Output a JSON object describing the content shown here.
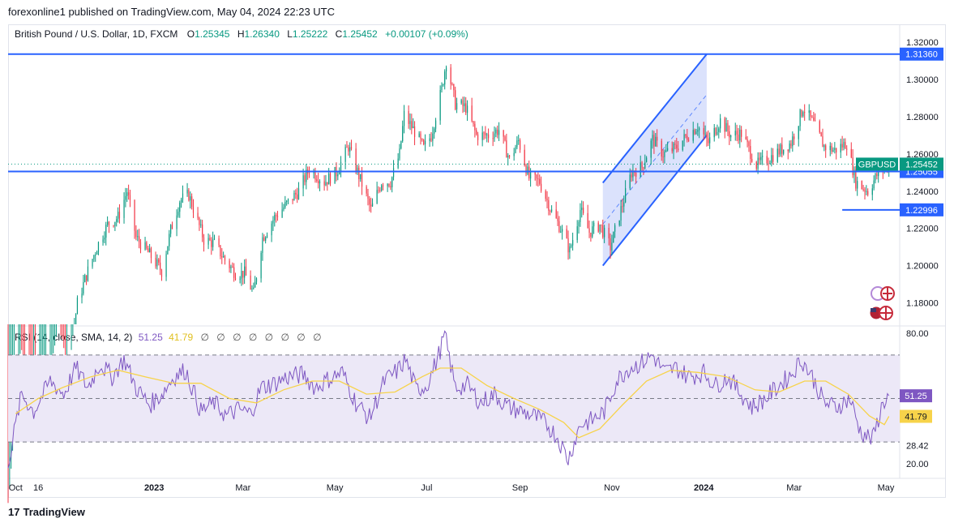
{
  "header": {
    "published": "forexonline1 published on TradingView.com, May 04, 2024 22:23 UTC"
  },
  "legend": {
    "symbol": "British Pound / U.S. Dollar, 1D, FXCM",
    "open_label": "O",
    "open": "1.25345",
    "high_label": "H",
    "high": "1.26340",
    "low_label": "L",
    "low": "1.25222",
    "close_label": "C",
    "close": "1.25452",
    "change": "+0.00107 (+0.09%)"
  },
  "rsi_legend": {
    "title": "RSI (14, close, SMA, 14, 2)",
    "rsi_value": "51.25",
    "sma_value": "41.79",
    "empty_values": [
      "∅",
      "∅",
      "∅",
      "∅",
      "∅",
      "∅",
      "∅",
      "∅"
    ]
  },
  "footer": {
    "brand": "TradingView",
    "logo": "17"
  },
  "colors": {
    "up": "#089981",
    "down": "#f23645",
    "line": "#2962ff",
    "channel_fill": "#c7d3fb",
    "rsi": "#7e57c2",
    "rsi_sma": "#f7d34a",
    "rsi_band": "#ece8f7",
    "axis_text": "#131722"
  },
  "chart_data": {
    "type": "candlestick",
    "title": "British Pound / U.S. Dollar, 1D, FXCM",
    "symbol_tag": "GBPUSD",
    "price_axis_ticks": [
      "1.32000",
      "1.30000",
      "1.28000",
      "1.26000",
      "1.24000",
      "1.22000",
      "1.20000",
      "1.18000"
    ],
    "price_range": [
      1.1685,
      1.3235
    ],
    "time_axis_labels": [
      "Oct",
      "16",
      "2023",
      "Mar",
      "May",
      "Jul",
      "Sep",
      "Nov",
      "2024",
      "Mar",
      "May"
    ],
    "time_axis_dates": [
      "2022-10-01",
      "2022-10-16",
      "2023-01-01",
      "2023-03-01",
      "2023-05-01",
      "2023-07-01",
      "2023-09-01",
      "2023-11-01",
      "2024-01-01",
      "2024-03-01",
      "2024-05-01"
    ],
    "date_range": [
      "2022-09-26",
      "2024-05-08"
    ],
    "close_price_tag": "1.25452",
    "horizontal_lines": [
      {
        "price": 1.3136,
        "label": "1.31360"
      },
      {
        "price": 1.25055,
        "label": "1.25055"
      },
      {
        "price": 1.22996,
        "label": "1.22996",
        "start": "2024-04-02"
      }
    ],
    "channel": {
      "lower_start": {
        "date": "2023-10-26",
        "price": 1.2
      },
      "lower_end": {
        "date": "2024-01-03",
        "price": 1.27
      },
      "upper_start": {
        "date": "2023-10-26",
        "price": 1.2445
      },
      "upper_end": {
        "date": "2024-01-03",
        "price": 1.3136
      }
    },
    "price_path": [
      [
        "2022-09-26",
        1.07
      ],
      [
        "2022-10-04",
        1.15
      ],
      [
        "2022-10-12",
        1.1
      ],
      [
        "2022-10-20",
        1.125
      ],
      [
        "2022-10-28",
        1.16
      ],
      [
        "2022-11-05",
        1.145
      ],
      [
        "2022-11-11",
        1.18
      ],
      [
        "2022-11-17",
        1.195
      ],
      [
        "2022-11-24",
        1.21
      ],
      [
        "2022-12-01",
        1.222
      ],
      [
        "2022-12-08",
        1.226
      ],
      [
        "2022-12-14",
        1.24
      ],
      [
        "2022-12-20",
        1.215
      ],
      [
        "2022-12-30",
        1.205
      ],
      [
        "2023-01-06",
        1.197
      ],
      [
        "2023-01-12",
        1.219
      ],
      [
        "2023-01-18",
        1.235
      ],
      [
        "2023-01-24",
        1.238
      ],
      [
        "2023-02-03",
        1.214
      ],
      [
        "2023-02-10",
        1.212
      ],
      [
        "2023-02-17",
        1.203
      ],
      [
        "2023-02-24",
        1.196
      ],
      [
        "2023-03-02",
        1.196
      ],
      [
        "2023-03-08",
        1.185
      ],
      [
        "2023-03-14",
        1.215
      ],
      [
        "2023-03-22",
        1.226
      ],
      [
        "2023-03-31",
        1.234
      ],
      [
        "2023-04-07",
        1.24
      ],
      [
        "2023-04-14",
        1.252
      ],
      [
        "2023-04-24",
        1.245
      ],
      [
        "2023-05-02",
        1.25
      ],
      [
        "2023-05-10",
        1.264
      ],
      [
        "2023-05-18",
        1.246
      ],
      [
        "2023-05-25",
        1.23
      ],
      [
        "2023-06-01",
        1.245
      ],
      [
        "2023-06-07",
        1.245
      ],
      [
        "2023-06-13",
        1.26
      ],
      [
        "2023-06-16",
        1.281
      ],
      [
        "2023-06-23",
        1.272
      ],
      [
        "2023-06-29",
        1.263
      ],
      [
        "2023-07-04",
        1.27
      ],
      [
        "2023-07-11",
        1.295
      ],
      [
        "2023-07-14",
        1.31
      ],
      [
        "2023-07-20",
        1.287
      ],
      [
        "2023-07-27",
        1.285
      ],
      [
        "2023-08-03",
        1.27
      ],
      [
        "2023-08-11",
        1.27
      ],
      [
        "2023-08-18",
        1.273
      ],
      [
        "2023-08-25",
        1.257
      ],
      [
        "2023-08-31",
        1.267
      ],
      [
        "2023-09-07",
        1.247
      ],
      [
        "2023-09-14",
        1.245
      ],
      [
        "2023-09-22",
        1.229
      ],
      [
        "2023-09-28",
        1.22
      ],
      [
        "2023-10-04",
        1.208
      ],
      [
        "2023-10-11",
        1.23
      ],
      [
        "2023-10-17",
        1.218
      ],
      [
        "2023-10-24",
        1.222
      ],
      [
        "2023-10-31",
        1.21
      ],
      [
        "2023-11-07",
        1.23
      ],
      [
        "2023-11-14",
        1.25
      ],
      [
        "2023-11-21",
        1.253
      ],
      [
        "2023-11-28",
        1.268
      ],
      [
        "2023-12-05",
        1.26
      ],
      [
        "2023-12-13",
        1.263
      ],
      [
        "2023-12-20",
        1.269
      ],
      [
        "2023-12-28",
        1.275
      ],
      [
        "2024-01-04",
        1.266
      ],
      [
        "2024-01-12",
        1.278
      ],
      [
        "2024-01-19",
        1.27
      ],
      [
        "2024-01-26",
        1.271
      ],
      [
        "2024-02-05",
        1.254
      ],
      [
        "2024-02-14",
        1.258
      ],
      [
        "2024-02-21",
        1.262
      ],
      [
        "2024-02-28",
        1.266
      ],
      [
        "2024-03-07",
        1.285
      ],
      [
        "2024-03-14",
        1.276
      ],
      [
        "2024-03-21",
        1.264
      ],
      [
        "2024-03-28",
        1.262
      ],
      [
        "2024-04-05",
        1.266
      ],
      [
        "2024-04-11",
        1.245
      ],
      [
        "2024-04-19",
        1.24
      ],
      [
        "2024-04-26",
        1.25
      ],
      [
        "2024-05-03",
        1.2545
      ]
    ],
    "rsi_axis_ticks": [
      "80.00",
      "51.99",
      "28.42",
      "20.00"
    ],
    "rsi_range": [
      17,
      83
    ],
    "rsi_band": [
      70,
      30
    ],
    "rsi_midline": 50,
    "rsi_value_tag": "51.25",
    "rsi_sma_tag": "41.79",
    "rsi_series": {
      "name": "RSI (14, close, SMA, 14, 2)",
      "points": [
        [
          "2022-09-26",
          20
        ],
        [
          "2022-10-05",
          52
        ],
        [
          "2022-10-13",
          44
        ],
        [
          "2022-10-24",
          58
        ],
        [
          "2022-11-02",
          52
        ],
        [
          "2022-11-10",
          64
        ],
        [
          "2022-11-18",
          55
        ],
        [
          "2022-11-26",
          66
        ],
        [
          "2022-12-04",
          60
        ],
        [
          "2022-12-12",
          68
        ],
        [
          "2022-12-20",
          55
        ],
        [
          "2022-12-29",
          47
        ],
        [
          "2023-01-06",
          52
        ],
        [
          "2023-01-14",
          60
        ],
        [
          "2023-01-22",
          63
        ],
        [
          "2023-02-01",
          44
        ],
        [
          "2023-02-10",
          48
        ],
        [
          "2023-02-18",
          42
        ],
        [
          "2023-02-26",
          45
        ],
        [
          "2023-03-06",
          43
        ],
        [
          "2023-03-13",
          55
        ],
        [
          "2023-03-22",
          57
        ],
        [
          "2023-03-31",
          60
        ],
        [
          "2023-04-10",
          61
        ],
        [
          "2023-04-18",
          55
        ],
        [
          "2023-04-27",
          59
        ],
        [
          "2023-05-06",
          62
        ],
        [
          "2023-05-15",
          48
        ],
        [
          "2023-05-24",
          41
        ],
        [
          "2023-06-03",
          58
        ],
        [
          "2023-06-12",
          63
        ],
        [
          "2023-06-17",
          68
        ],
        [
          "2023-06-24",
          54
        ],
        [
          "2023-07-01",
          56
        ],
        [
          "2023-07-08",
          68
        ],
        [
          "2023-07-13",
          79
        ],
        [
          "2023-07-20",
          55
        ],
        [
          "2023-07-28",
          56
        ],
        [
          "2023-08-06",
          48
        ],
        [
          "2023-08-15",
          52
        ],
        [
          "2023-08-24",
          46
        ],
        [
          "2023-09-02",
          44
        ],
        [
          "2023-09-10",
          42
        ],
        [
          "2023-09-19",
          38
        ],
        [
          "2023-09-26",
          32
        ],
        [
          "2023-10-03",
          22
        ],
        [
          "2023-10-11",
          38
        ],
        [
          "2023-10-19",
          40
        ],
        [
          "2023-10-27",
          44
        ],
        [
          "2023-11-04",
          58
        ],
        [
          "2023-11-12",
          64
        ],
        [
          "2023-11-20",
          66
        ],
        [
          "2023-11-28",
          70
        ],
        [
          "2023-12-06",
          62
        ],
        [
          "2023-12-14",
          64
        ],
        [
          "2023-12-22",
          60
        ],
        [
          "2024-01-01",
          62
        ],
        [
          "2024-01-09",
          56
        ],
        [
          "2024-01-17",
          60
        ],
        [
          "2024-01-25",
          53
        ],
        [
          "2024-02-02",
          46
        ],
        [
          "2024-02-11",
          50
        ],
        [
          "2024-02-20",
          56
        ],
        [
          "2024-02-28",
          61
        ],
        [
          "2024-03-06",
          68
        ],
        [
          "2024-03-13",
          60
        ],
        [
          "2024-03-21",
          48
        ],
        [
          "2024-03-29",
          46
        ],
        [
          "2024-04-07",
          50
        ],
        [
          "2024-04-14",
          35
        ],
        [
          "2024-04-22",
          31
        ],
        [
          "2024-04-29",
          48
        ],
        [
          "2024-05-03",
          51.25
        ]
      ]
    },
    "rsi_sma_series": {
      "points": [
        [
          "2022-10-01",
          43
        ],
        [
          "2022-10-16",
          50
        ],
        [
          "2022-11-01",
          55
        ],
        [
          "2022-11-20",
          60
        ],
        [
          "2022-12-08",
          63
        ],
        [
          "2022-12-26",
          60
        ],
        [
          "2023-01-14",
          57
        ],
        [
          "2023-02-01",
          57
        ],
        [
          "2023-02-20",
          50
        ],
        [
          "2023-03-10",
          48
        ],
        [
          "2023-03-28",
          54
        ],
        [
          "2023-04-16",
          58
        ],
        [
          "2023-05-04",
          58
        ],
        [
          "2023-05-22",
          52
        ],
        [
          "2023-06-10",
          53
        ],
        [
          "2023-06-28",
          60
        ],
        [
          "2023-07-10",
          64
        ],
        [
          "2023-07-24",
          64
        ],
        [
          "2023-08-10",
          56
        ],
        [
          "2023-08-28",
          50
        ],
        [
          "2023-09-14",
          45
        ],
        [
          "2023-09-30",
          39
        ],
        [
          "2023-10-10",
          32
        ],
        [
          "2023-10-24",
          36
        ],
        [
          "2023-11-08",
          47
        ],
        [
          "2023-11-24",
          58
        ],
        [
          "2023-12-10",
          63
        ],
        [
          "2023-12-28",
          62
        ],
        [
          "2024-01-16",
          60
        ],
        [
          "2024-02-04",
          54
        ],
        [
          "2024-02-20",
          53
        ],
        [
          "2024-03-08",
          58
        ],
        [
          "2024-03-22",
          58
        ],
        [
          "2024-04-06",
          52
        ],
        [
          "2024-04-20",
          42
        ],
        [
          "2024-04-30",
          38
        ],
        [
          "2024-05-03",
          41.79
        ]
      ]
    }
  }
}
